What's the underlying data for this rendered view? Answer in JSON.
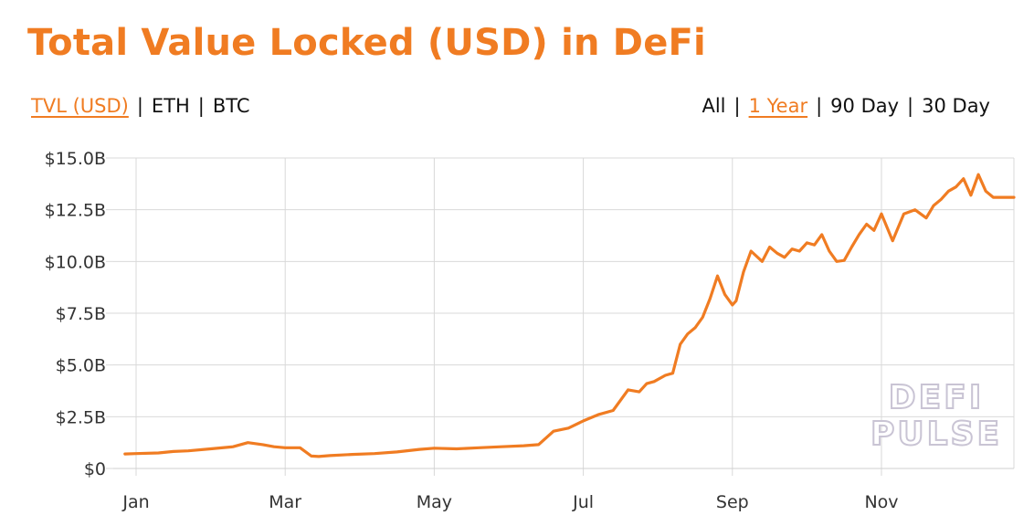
{
  "title": "Total Value Locked (USD) in DeFi",
  "metric_tabs": [
    {
      "label": "TVL (USD)",
      "active": true
    },
    {
      "label": "ETH",
      "active": false
    },
    {
      "label": "BTC",
      "active": false
    }
  ],
  "range_tabs": [
    {
      "label": "All",
      "active": false
    },
    {
      "label": "1 Year",
      "active": true
    },
    {
      "label": "90 Day",
      "active": false
    },
    {
      "label": "30 Day",
      "active": false
    }
  ],
  "separator": "|",
  "watermark": [
    "DEFI",
    "PULSE"
  ],
  "colors": {
    "accent": "#f07c22",
    "line": "#f07c22",
    "grid": "#d9d9d9",
    "text": "#111111"
  },
  "chart_data": {
    "type": "line",
    "title": "Total Value Locked (USD) in DeFi",
    "xlabel": "",
    "ylabel": "",
    "y_unit": "billion USD",
    "ylim": [
      0,
      15
    ],
    "y_ticks": [
      0,
      2.5,
      5,
      7.5,
      10,
      12.5,
      15
    ],
    "y_tick_labels": [
      "$0",
      "$2.5B",
      "$5.0B",
      "$7.5B",
      "$10.0B",
      "$12.5B",
      "$15.0B"
    ],
    "x_ticks": [
      "Jan",
      "Mar",
      "May",
      "Jul",
      "Sep",
      "Nov"
    ],
    "x_tick_months": [
      1,
      3,
      5,
      7,
      9,
      11
    ],
    "grid": true,
    "series": [
      {
        "name": "TVL (USD)",
        "x": [
          0.85,
          1.0,
          1.3,
          1.5,
          1.7,
          2.0,
          2.3,
          2.5,
          2.7,
          2.85,
          3.0,
          3.2,
          3.35,
          3.45,
          3.6,
          3.9,
          4.2,
          4.5,
          4.8,
          5.0,
          5.3,
          5.6,
          5.9,
          6.2,
          6.4,
          6.6,
          6.8,
          7.0,
          7.2,
          7.4,
          7.6,
          7.75,
          7.85,
          7.95,
          8.1,
          8.2,
          8.3,
          8.4,
          8.5,
          8.6,
          8.7,
          8.8,
          8.9,
          9.0,
          9.05,
          9.15,
          9.25,
          9.4,
          9.5,
          9.6,
          9.7,
          9.8,
          9.9,
          10.0,
          10.1,
          10.2,
          10.3,
          10.4,
          10.5,
          10.6,
          10.7,
          10.8,
          10.9,
          11.0,
          11.15,
          11.3,
          11.45,
          11.6,
          11.7,
          11.8,
          11.9,
          12.0,
          12.1,
          12.2,
          12.3,
          12.4,
          12.5,
          12.6,
          12.7,
          12.75,
          12.8,
          12.85
        ],
        "values": [
          0.7,
          0.72,
          0.75,
          0.82,
          0.85,
          0.95,
          1.05,
          1.25,
          1.15,
          1.05,
          1.0,
          1.0,
          0.6,
          0.58,
          0.62,
          0.68,
          0.72,
          0.8,
          0.92,
          0.98,
          0.95,
          1.0,
          1.05,
          1.1,
          1.15,
          1.8,
          1.95,
          2.3,
          2.6,
          2.8,
          3.8,
          3.7,
          4.1,
          4.2,
          4.5,
          4.6,
          6.0,
          6.5,
          6.8,
          7.3,
          8.2,
          9.3,
          8.4,
          7.9,
          8.1,
          9.5,
          10.5,
          10.0,
          10.7,
          10.4,
          10.2,
          10.6,
          10.5,
          10.9,
          10.8,
          11.3,
          10.5,
          10.0,
          10.05,
          10.7,
          11.3,
          11.8,
          11.5,
          12.3,
          11.0,
          12.3,
          12.5,
          12.1,
          12.7,
          13.0,
          13.4,
          13.6,
          14.0,
          13.2,
          14.2,
          13.4,
          13.1,
          13.1,
          13.1,
          13.1,
          13.1,
          13.1
        ]
      }
    ]
  }
}
